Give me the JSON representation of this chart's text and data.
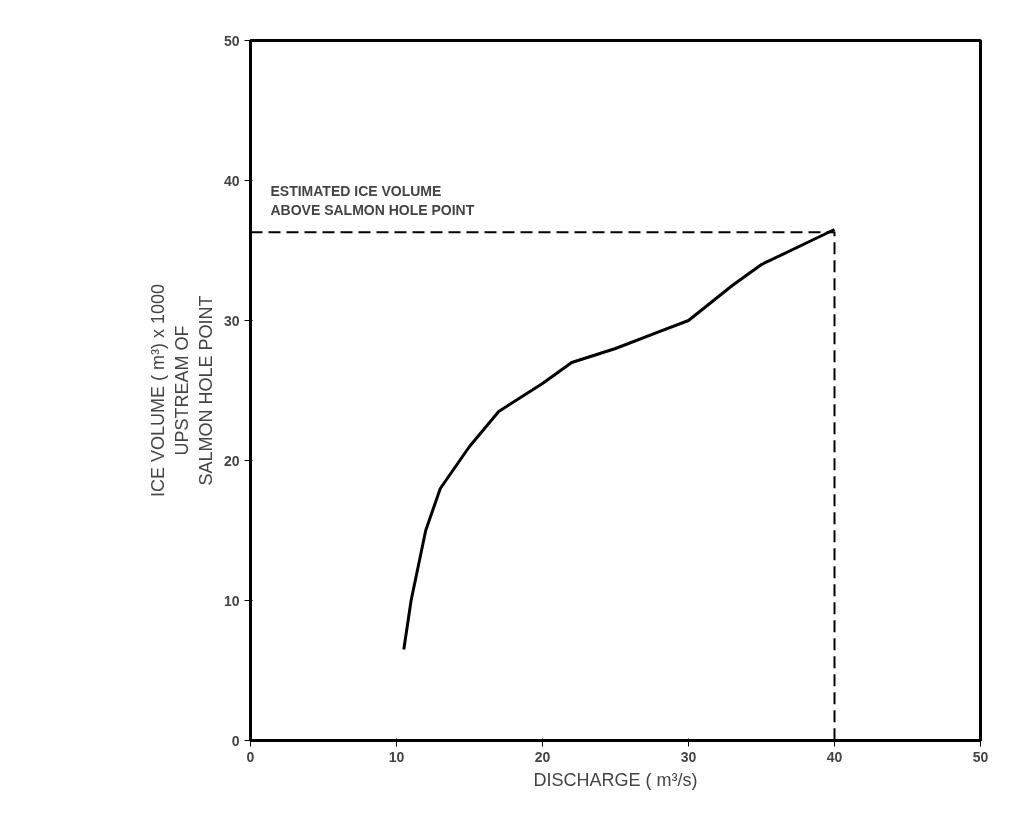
{
  "chart_data": {
    "type": "line",
    "xlabel": "DISCHARGE ( m³/s)",
    "ylabel": "ICE VOLUME ( m³) x 1000\nUPSTREAM OF\nSALMON HOLE POINT",
    "xlim": [
      0,
      50
    ],
    "ylim": [
      0,
      50
    ],
    "xticks": [
      0,
      10,
      20,
      30,
      40,
      50
    ],
    "yticks": [
      0,
      10,
      20,
      30,
      40,
      50
    ],
    "grid": false,
    "series": [
      {
        "color": "#000000",
        "line_style": "solid",
        "x": [
          10.5,
          11,
          12,
          13,
          15,
          17,
          20,
          22,
          25,
          28,
          30,
          33,
          35,
          38,
          40
        ],
        "values": [
          6.5,
          10,
          15,
          18,
          21,
          23.5,
          25.5,
          27,
          28,
          29.2,
          30,
          32.5,
          34,
          35.5,
          36.5
        ]
      },
      {
        "color": "#000000",
        "line_style": "dashed",
        "x": [
          0,
          40,
          40
        ],
        "values": [
          36.3,
          36.3,
          0
        ]
      }
    ],
    "annotations": [
      "ESTIMATED ICE VOLUME\nABOVE SALMON HOLE POINT"
    ]
  }
}
